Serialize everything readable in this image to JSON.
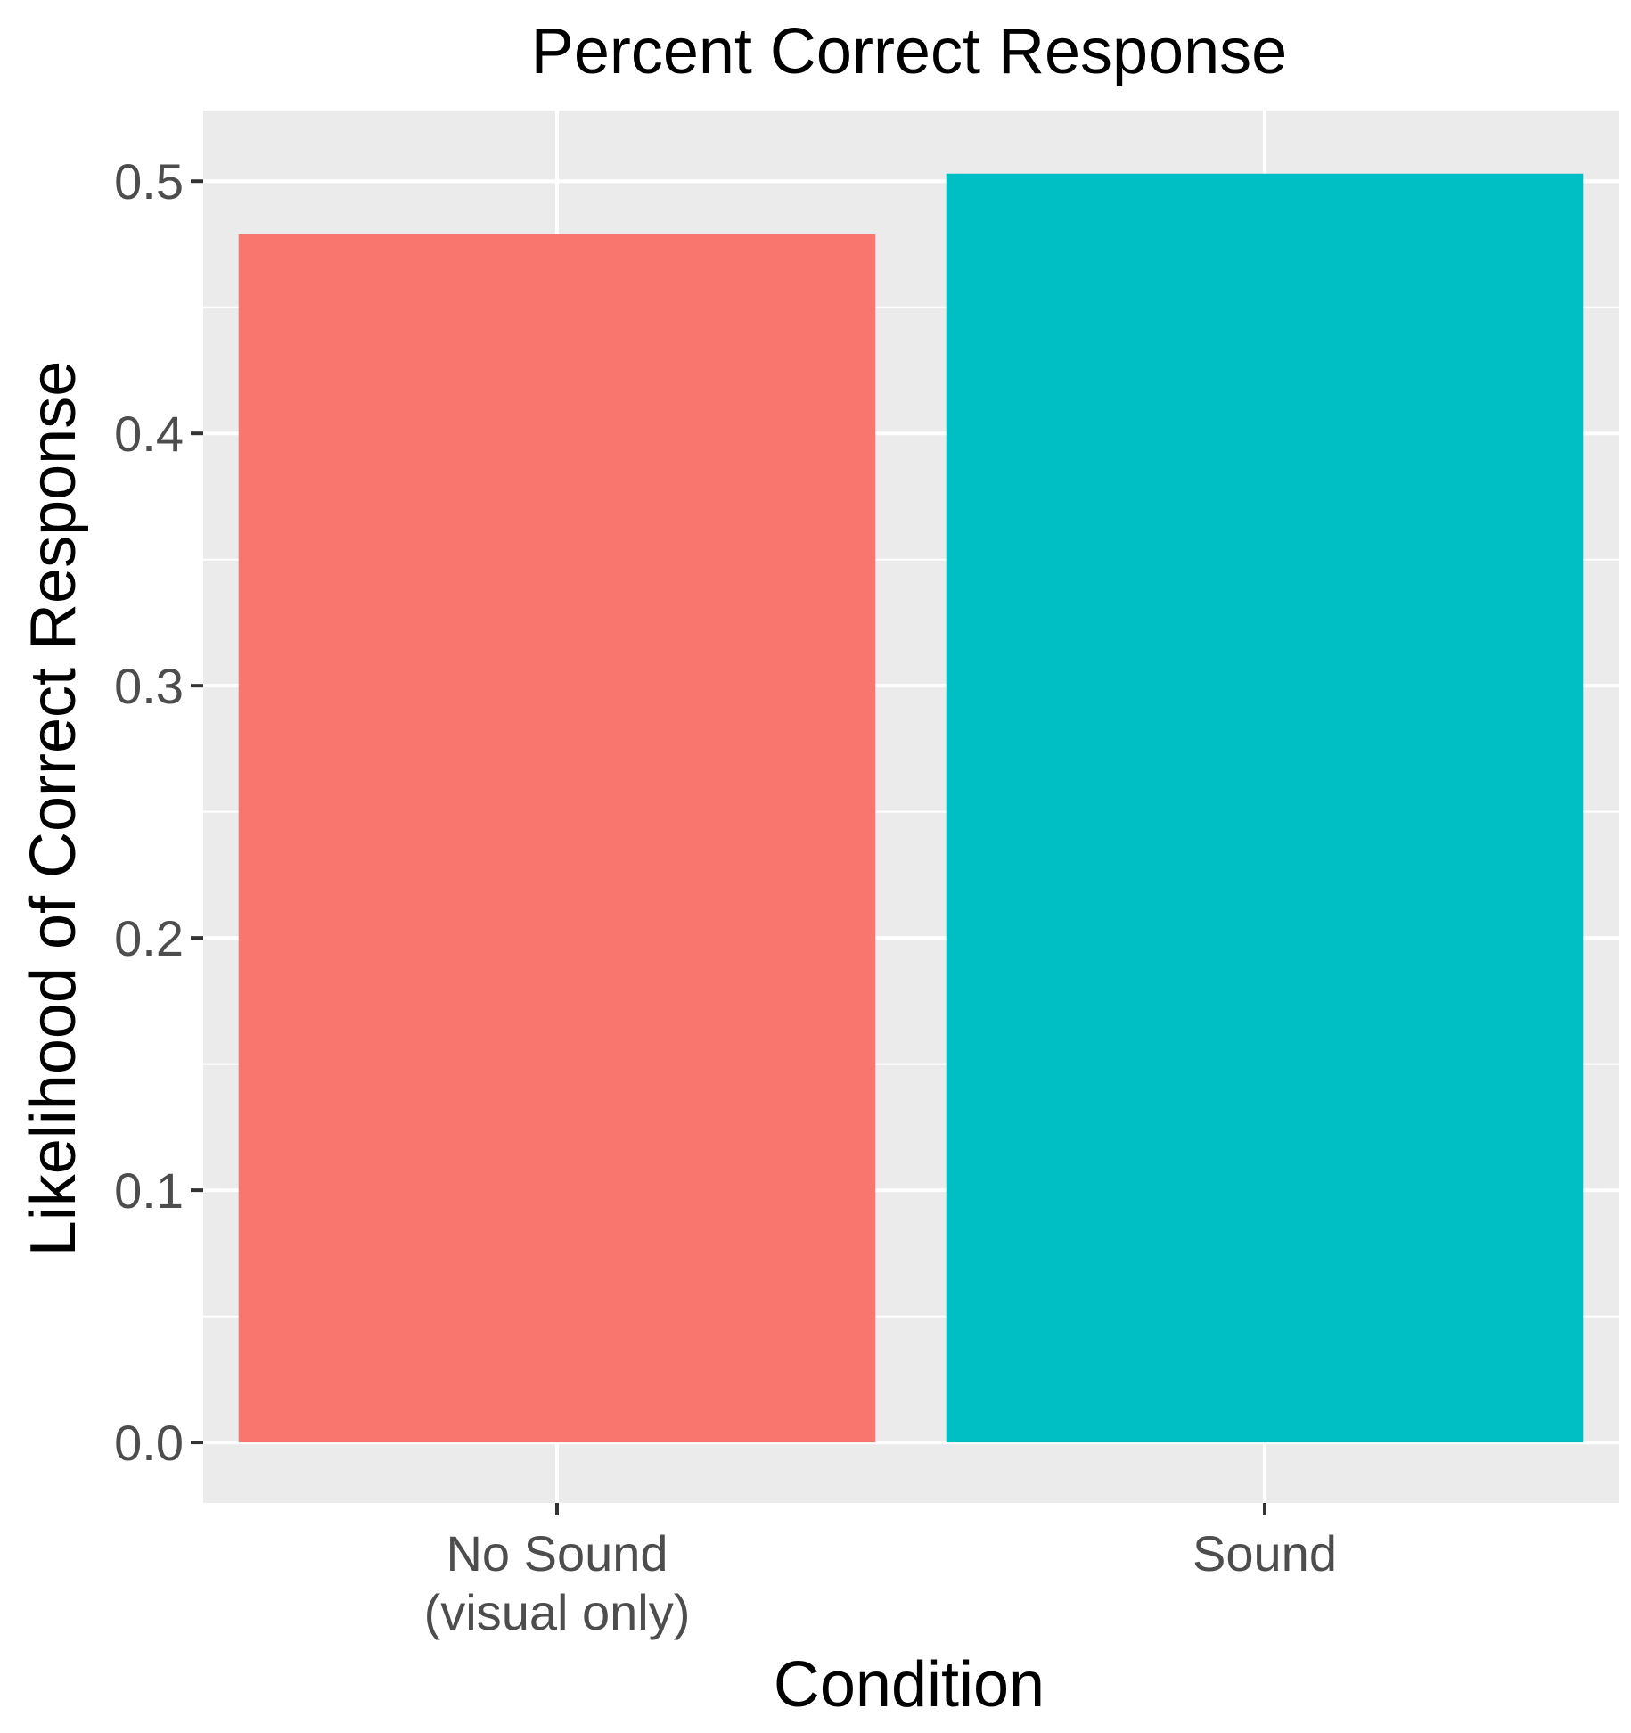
{
  "chart_data": {
    "type": "bar",
    "title": "Percent Correct Response",
    "xlabel": "Condition",
    "ylabel": "Likelihood of Correct Response",
    "categories": [
      [
        "No Sound",
        "(visual only)"
      ],
      [
        "Sound"
      ]
    ],
    "values": [
      0.479,
      0.503
    ],
    "colors": [
      "#F8766D",
      "#00BFC4"
    ],
    "ylim": [
      -0.024,
      0.528
    ],
    "yticks": [
      0.0,
      0.1,
      0.2,
      0.3,
      0.4,
      0.5
    ],
    "ytick_labels": [
      "0.0",
      "0.1",
      "0.2",
      "0.3",
      "0.4",
      "0.5"
    ],
    "grid": true,
    "panel_color": "#EBEBEB",
    "grid_color": "#FFFFFF",
    "legend": "none"
  }
}
